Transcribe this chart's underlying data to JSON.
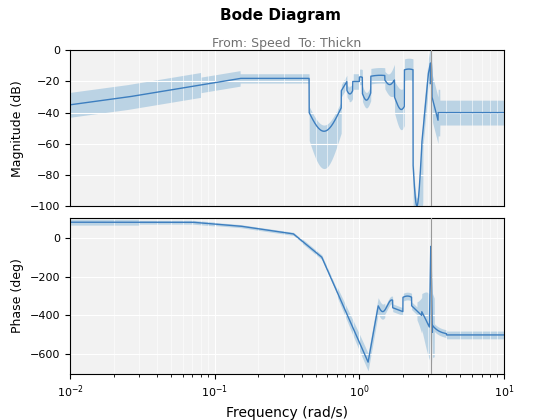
{
  "title": "Bode Diagram",
  "subtitle": "From: Speed  To: Thickn",
  "xlabel": "Frequency (rad/s)",
  "ylabel_mag": "Magnitude (dB)",
  "ylabel_phase": "Phase (deg)",
  "freq_range": [
    0.01,
    10
  ],
  "mag_ylim": [
    -100,
    0
  ],
  "phase_ylim": [
    -700,
    100
  ],
  "mag_yticks": [
    0,
    -20,
    -40,
    -60,
    -80,
    -100
  ],
  "phase_yticks": [
    0,
    -200,
    -400,
    -600
  ],
  "line_color": "#3d7ebf",
  "fill_color": "#7aafd4",
  "fill_alpha": 0.45,
  "vline_x": 3.14,
  "vline_color": "#999999",
  "bg_color": "#f2f2f2",
  "grid_color": "white"
}
